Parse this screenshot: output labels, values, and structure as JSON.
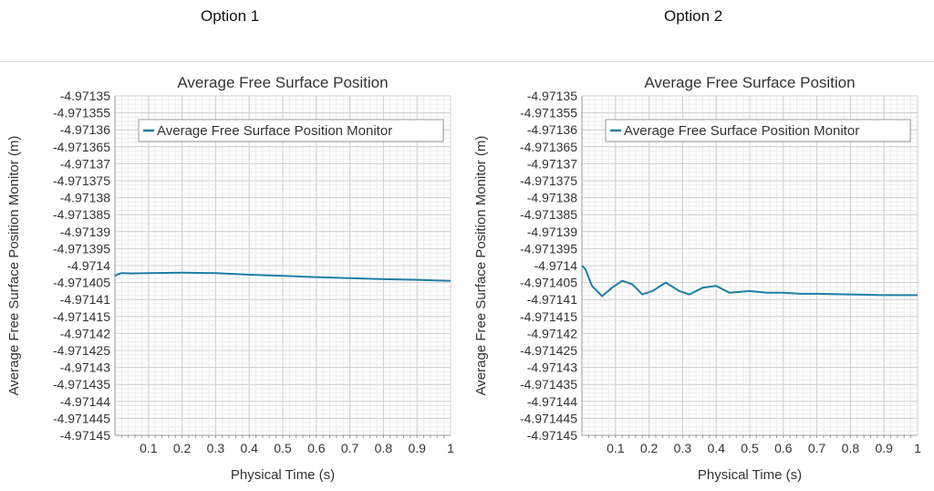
{
  "options": [
    {
      "label": "Option 1"
    },
    {
      "label": "Option 2"
    }
  ],
  "chart_data": [
    {
      "type": "line",
      "title": "Average Free Surface Position",
      "xlabel": "Physical Time (s)",
      "ylabel": "Average Free Surface Position Monitor (m)",
      "xlim": [
        0,
        1
      ],
      "ylim": [
        -4.97145,
        -4.97135
      ],
      "x_ticks": [
        "0.1",
        "0.2",
        "0.3",
        "0.4",
        "0.5",
        "0.6",
        "0.7",
        "0.8",
        "0.9",
        "1"
      ],
      "y_ticks": [
        "-4.97135",
        "-4.971355",
        "-4.97136",
        "-4.971365",
        "-4.97137",
        "-4.971375",
        "-4.97138",
        "-4.971385",
        "-4.97139",
        "-4.971395",
        "-4.9714",
        "-4.971405",
        "-4.97141",
        "-4.971415",
        "-4.97142",
        "-4.971425",
        "-4.97143",
        "-4.971435",
        "-4.97144",
        "-4.971445",
        "-4.97145"
      ],
      "grid": true,
      "legend": "top-right",
      "series": [
        {
          "name": "Average Free Surface Position Monitor",
          "color": "#1f7fa5",
          "x": [
            0.0,
            0.01,
            0.02,
            0.05,
            0.1,
            0.2,
            0.3,
            0.4,
            0.5,
            0.6,
            0.7,
            0.8,
            0.9,
            1.0
          ],
          "y": [
            -4.971403,
            -4.9714025,
            -4.9714022,
            -4.9714023,
            -4.9714022,
            -4.9714021,
            -4.9714022,
            -4.9714027,
            -4.971403,
            -4.9714034,
            -4.9714037,
            -4.971404,
            -4.9714042,
            -4.9714045
          ]
        }
      ]
    },
    {
      "type": "line",
      "title": "Average Free Surface Position",
      "xlabel": "Physical Time (s)",
      "ylabel": "Average Free Surface Position Monitor (m)",
      "xlim": [
        0,
        1
      ],
      "ylim": [
        -4.97145,
        -4.97135
      ],
      "x_ticks": [
        "0.1",
        "0.2",
        "0.3",
        "0.4",
        "0.5",
        "0.6",
        "0.7",
        "0.8",
        "0.9",
        "1"
      ],
      "y_ticks": [
        "-4.97135",
        "-4.971355",
        "-4.97136",
        "-4.971365",
        "-4.97137",
        "-4.971375",
        "-4.97138",
        "-4.971385",
        "-4.97139",
        "-4.971395",
        "-4.9714",
        "-4.971405",
        "-4.97141",
        "-4.971415",
        "-4.97142",
        "-4.971425",
        "-4.97143",
        "-4.971435",
        "-4.97144",
        "-4.971445",
        "-4.97145"
      ],
      "grid": true,
      "legend": "top-right",
      "series": [
        {
          "name": "Average Free Surface Position Monitor",
          "color": "#1f7fa5",
          "x": [
            0.0,
            0.01,
            0.03,
            0.06,
            0.09,
            0.12,
            0.15,
            0.18,
            0.21,
            0.25,
            0.29,
            0.32,
            0.36,
            0.4,
            0.44,
            0.5,
            0.55,
            0.6,
            0.65,
            0.7,
            0.8,
            0.9,
            1.0
          ],
          "y": [
            -4.9714,
            -4.971401,
            -4.971406,
            -4.971409,
            -4.9714065,
            -4.9714045,
            -4.9714055,
            -4.9714085,
            -4.9714075,
            -4.971405,
            -4.9714075,
            -4.9714085,
            -4.9714065,
            -4.971406,
            -4.971408,
            -4.9714075,
            -4.971408,
            -4.971408,
            -4.9714083,
            -4.9714083,
            -4.9714085,
            -4.9714087,
            -4.9714087
          ]
        }
      ]
    }
  ]
}
